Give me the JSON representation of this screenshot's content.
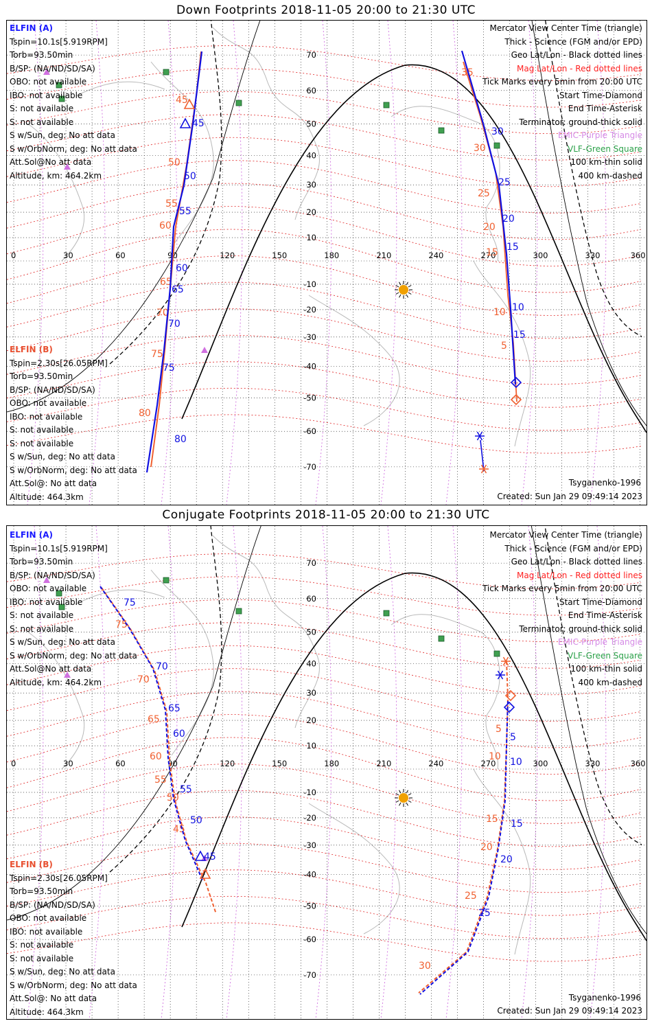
{
  "colors": {
    "probe_a": "#1010e0",
    "probe_b": "#f06030",
    "mag_grid": "#e02020",
    "purple": "#d070e0",
    "green": "#40a050",
    "sun": "#f0a000"
  },
  "panels": [
    {
      "title": "Down Footprints 2018-11-05 20:00 to 21:30 UTC",
      "probe_a": {
        "name": "ELFIN (A)",
        "lines": [
          "Tspin=10.1s[5.919RPM]",
          "Torb=93.50min",
          "B/SP: (NA/ND/SD/SA)",
          "OBO: not available",
          "IBO: not available",
          "S: not available",
          "S: not available",
          "S w/Sun, deg: No att data",
          "S w/OrbNorm, deg: No att data",
          "Att.Sol@No att data",
          "Altitude, km: 464.2km"
        ]
      },
      "probe_b": {
        "name": "ELFIN (B)",
        "lines": [
          "Tspin=2.30s[26.05RPM]",
          "Torb=93.50min",
          "B/SP: (NA/ND/SD/SA)",
          "OBO: not available",
          "IBO: not available",
          "S: not available",
          "S: not available",
          "S w/Sun, deg: No att data",
          "S w/OrbNorm, deg: No att data",
          "Att.Sol@: No att data",
          "Altitude: 464.3km"
        ]
      },
      "legend": {
        "l1": "Mercator View Center Time (triangle)",
        "l2": "Thick - Science (FGM and/or EPD)",
        "l3": "Geo Lat/Lon - Black dotted lines",
        "l4": "Mag Lat/Lon - Red dotted lines",
        "l5": "Tick Marks every 5min from 20:00 UTC",
        "l6": "Start Time-Diamond",
        "l7": "End Time-Asterisk",
        "l8": "Terminator: ground-thick solid",
        "l9": "EMIC-Purple Triangle",
        "l10": "VLF-Green Square",
        "l11": "100 km-thin solid",
        "l12": "400 km-dashed"
      },
      "model": "Tsyganenko-1996",
      "created": "Created: Sun Jan 29 09:49:14 2023",
      "tick_marks": {
        "a_track1": [
          "45",
          "50",
          "55",
          "60",
          "65",
          "70",
          "75",
          "80"
        ],
        "b_track1": [
          "45",
          "50",
          "55",
          "60",
          "65",
          "70",
          "75",
          "80"
        ],
        "a_track2": [
          "30",
          "25",
          "20",
          "15",
          "10",
          "15"
        ],
        "b_track2": [
          "35",
          "30",
          "25",
          "20",
          "15",
          "10",
          "5"
        ]
      }
    },
    {
      "title": "Conjugate Footprints 2018-11-05 20:00 to 21:30 UTC",
      "probe_a": {
        "name": "ELFIN (A)",
        "lines": [
          "Tspin=10.1s[5.919RPM]",
          "Torb=93.50min",
          "B/SP: (NA/ND/SD/SA)",
          "OBO: not available",
          "IBO: not available",
          "S: not available",
          "S: not available",
          "S w/Sun, deg: No att data",
          "S w/OrbNorm, deg: No att data",
          "Att.Sol@No att data",
          "Altitude, km: 464.2km"
        ]
      },
      "probe_b": {
        "name": "ELFIN (B)",
        "lines": [
          "Tspin=2.30s[26.05RPM]",
          "Torb=93.50min",
          "B/SP: (NA/ND/SD/SA)",
          "OBO: not available",
          "IBO: not available",
          "S: not available",
          "S: not available",
          "S w/Sun, deg: No att data",
          "S w/OrbNorm, deg: No att data",
          "Att.Sol@: No att data",
          "Altitude: 464.3km"
        ]
      },
      "legend": {
        "l1": "Mercator View Center Time (triangle)",
        "l2": "Thick - Science (FGM and/or EPD)",
        "l3": "Geo Lat/Lon - Black dotted lines",
        "l4": "Mag Lat/Lon - Red dotted lines",
        "l5": "Tick Marks every 5min from 20:00 UTC",
        "l6": "Start Time-Diamond",
        "l7": "End Time-Asterisk",
        "l8": "Terminator: ground-thick solid",
        "l9": "EMIC-Purple Triangle",
        "l10": "VLF-Green Square",
        "l11": "100 km-thin solid",
        "l12": "400 km-dashed"
      },
      "model": "Tsyganenko-1996",
      "created": "Created: Sun Jan 29 09:49:14 2023",
      "tick_marks": {
        "a_track1": [
          "75",
          "70",
          "65",
          "60",
          "55",
          "50",
          "45"
        ],
        "b_track1": [
          "75",
          "70",
          "65",
          "60",
          "55",
          "50",
          "45"
        ],
        "a_track2": [
          "5",
          "10",
          "15",
          "20",
          "25"
        ],
        "b_track2": [
          "5",
          "10",
          "15",
          "20",
          "25",
          "30"
        ]
      }
    }
  ],
  "lon_labels": [
    "0",
    "30",
    "60",
    "90",
    "120",
    "150",
    "180",
    "210",
    "240",
    "270",
    "300",
    "330",
    "360"
  ],
  "lat_labels": [
    "70",
    "60",
    "50",
    "40",
    "30",
    "20",
    "10",
    "-10",
    "-20",
    "-30",
    "-40",
    "-50",
    "-60",
    "-70"
  ]
}
